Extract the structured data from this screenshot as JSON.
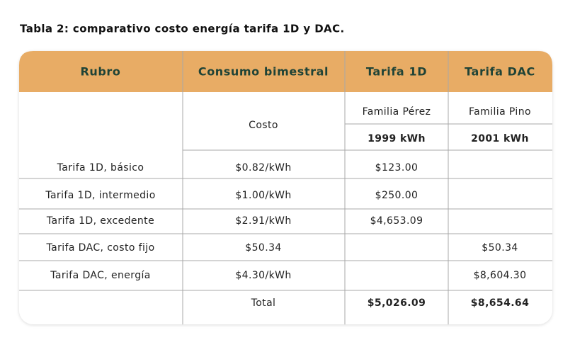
{
  "caption": "Tabla 2: comparativo costo energía tarifa 1D y DAC.",
  "table": {
    "header": [
      "Rubro",
      "Consumo bimestral",
      "Tarifa 1D",
      "Tarifa DAC"
    ],
    "subheader": {
      "cost_label": "Costo",
      "families": [
        "Familia Pérez",
        "Familia Pino"
      ],
      "consumption": [
        "1999 kWh",
        "2001 kWh"
      ]
    },
    "rows": [
      {
        "rubro": "Tarifa 1D, básico",
        "costo": "$0.82/kWh",
        "tarifa_1d": "$123.00"
      },
      {
        "rubro": "Tarifa 1D, intermedio",
        "costo": "$1.00/kWh",
        "tarifa_1d": "$250.00"
      },
      {
        "rubro": "Tarifa 1D, excedente",
        "costo": "$2.91/kWh",
        "tarifa_1d": "$4,653.09"
      },
      {
        "rubro": "Tarifa DAC, costo fijo",
        "costo": "$50.34",
        "tarifa_dac": "$50.34"
      },
      {
        "rubro": "Tarifa DAC, energía",
        "costo": "$4.30/kWh",
        "tarifa_dac": "$8,604.30"
      }
    ],
    "total": {
      "label": "Total",
      "values": [
        "$5,026.09",
        "$8,654.64"
      ]
    }
  }
}
